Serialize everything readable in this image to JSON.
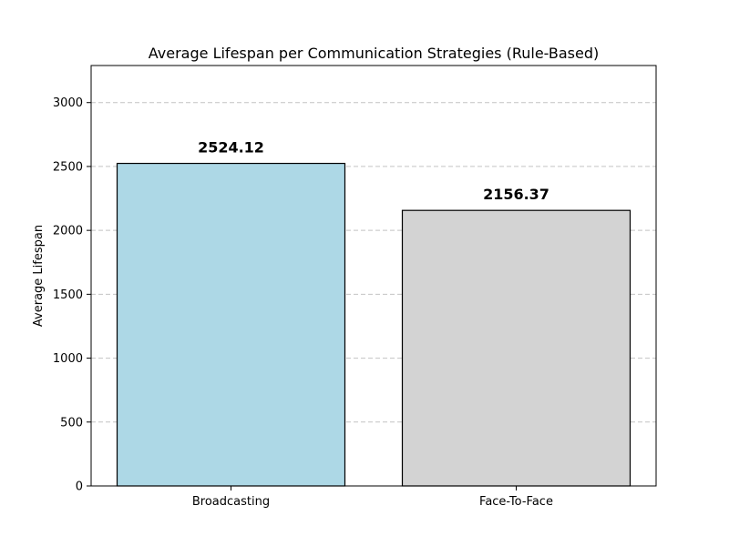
{
  "chart_data": {
    "type": "bar",
    "title": "Average Lifespan per Communication Strategies (Rule-Based)",
    "xlabel": "",
    "ylabel": "Average Lifespan",
    "categories": [
      "Broadcasting",
      "Face-To-Face"
    ],
    "values": [
      2524.12,
      2156.37
    ],
    "value_labels": [
      "2524.12",
      "2156.37"
    ],
    "bar_colors": [
      "#add8e6",
      "#d3d3d3"
    ],
    "bar_edge_color": "#000000",
    "ylim": [
      0,
      3290
    ],
    "yticks": [
      0,
      500,
      1000,
      1500,
      2000,
      2500,
      3000
    ],
    "ytick_labels": [
      "0",
      "500",
      "1000",
      "1500",
      "2000",
      "2500",
      "3000"
    ],
    "grid": "y-dashed",
    "legend": "none"
  }
}
